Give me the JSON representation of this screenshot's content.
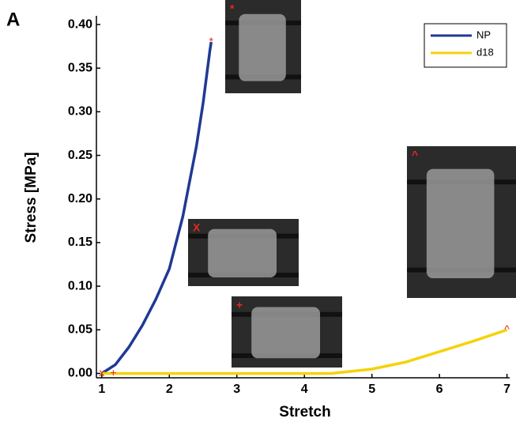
{
  "chart_data": {
    "type": "line",
    "panel_label": "A",
    "xlabel": "Stretch",
    "ylabel": "Stress [MPa]",
    "xlim": [
      0.92,
      7.04
    ],
    "ylim": [
      -0.005,
      0.41
    ],
    "xticks": [
      1,
      2,
      3,
      4,
      5,
      6,
      7
    ],
    "yticks": [
      {
        "value": 0,
        "label": "0.00"
      },
      {
        "value": 0.05,
        "label": "0.05"
      },
      {
        "value": 0.1,
        "label": "0.10"
      },
      {
        "value": 0.15,
        "label": "0.15"
      },
      {
        "value": 0.2,
        "label": "0.20"
      },
      {
        "value": 0.25,
        "label": "0.25"
      },
      {
        "value": 0.3,
        "label": "0.30"
      },
      {
        "value": 0.35,
        "label": "0.35"
      },
      {
        "value": 0.4,
        "label": "0.40"
      }
    ],
    "legend_position": "upper right",
    "series": [
      {
        "name": "NP",
        "color": "#1f3a93",
        "x": [
          1,
          1.2,
          1.4,
          1.6,
          1.8,
          2.0,
          2.2,
          2.4,
          2.5,
          2.6,
          2.62
        ],
        "values": [
          0,
          0.01,
          0.03,
          0.055,
          0.085,
          0.12,
          0.18,
          0.26,
          0.31,
          0.37,
          0.38
        ]
      },
      {
        "name": "d18",
        "color": "#f5d20a",
        "x": [
          1,
          2,
          3,
          4,
          4.4,
          5,
          5.5,
          6,
          6.5,
          7
        ],
        "values": [
          0,
          0,
          0,
          0,
          0,
          0.005,
          0.013,
          0.025,
          0.037,
          0.05
        ]
      }
    ],
    "markers": [
      {
        "label": "x",
        "x": 1,
        "y": 0
      },
      {
        "label": "+",
        "x": 1.17,
        "y": 0
      },
      {
        "label": "*",
        "x": 2.62,
        "y": 0.38
      },
      {
        "label": "^",
        "x": 7,
        "y": 0.05
      }
    ],
    "insets": [
      {
        "label": "*"
      },
      {
        "label": "X"
      },
      {
        "label": "+"
      },
      {
        "label": "^"
      }
    ]
  }
}
